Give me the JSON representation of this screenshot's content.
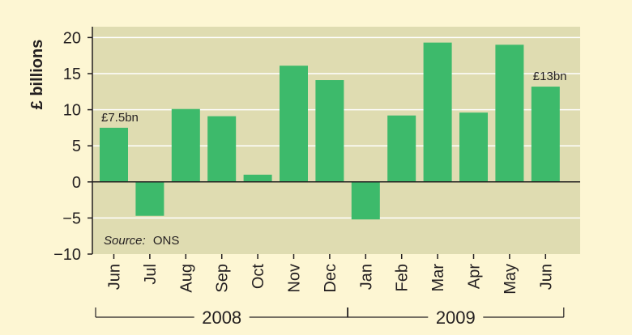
{
  "chart_data": {
    "type": "bar",
    "categories": [
      "Jun",
      "Jul",
      "Aug",
      "Sep",
      "Oct",
      "Nov",
      "Dec",
      "Jan",
      "Feb",
      "Mar",
      "Apr",
      "May",
      "Jun"
    ],
    "values": [
      7.5,
      -4.7,
      10.1,
      9.1,
      1.0,
      16.1,
      14.1,
      -5.2,
      9.2,
      19.3,
      9.6,
      19.0,
      13.2
    ],
    "groups": [
      {
        "label": "2008",
        "from": 0,
        "to": 6
      },
      {
        "label": "2009",
        "from": 7,
        "to": 12
      }
    ],
    "ylabel": "£ billions",
    "yticks": [
      "20",
      "15",
      "10",
      "5",
      "0",
      "−5",
      "−10"
    ],
    "ytick_values": [
      20,
      15,
      10,
      5,
      0,
      -5,
      -10
    ],
    "ylim": [
      -10,
      21.5
    ],
    "grid": true,
    "annotations": [
      {
        "index": 0,
        "text": "£7.5bn"
      },
      {
        "index": 12,
        "text": "£13bn"
      }
    ],
    "source_prefix": "Source:",
    "source_name": "ONS",
    "colors": {
      "bar": "#3dba6b",
      "plot_bg": "#dfdcb1",
      "page_bg": "#fdf6d3",
      "gridline": "#ffffff",
      "axis": "#231f20"
    }
  }
}
